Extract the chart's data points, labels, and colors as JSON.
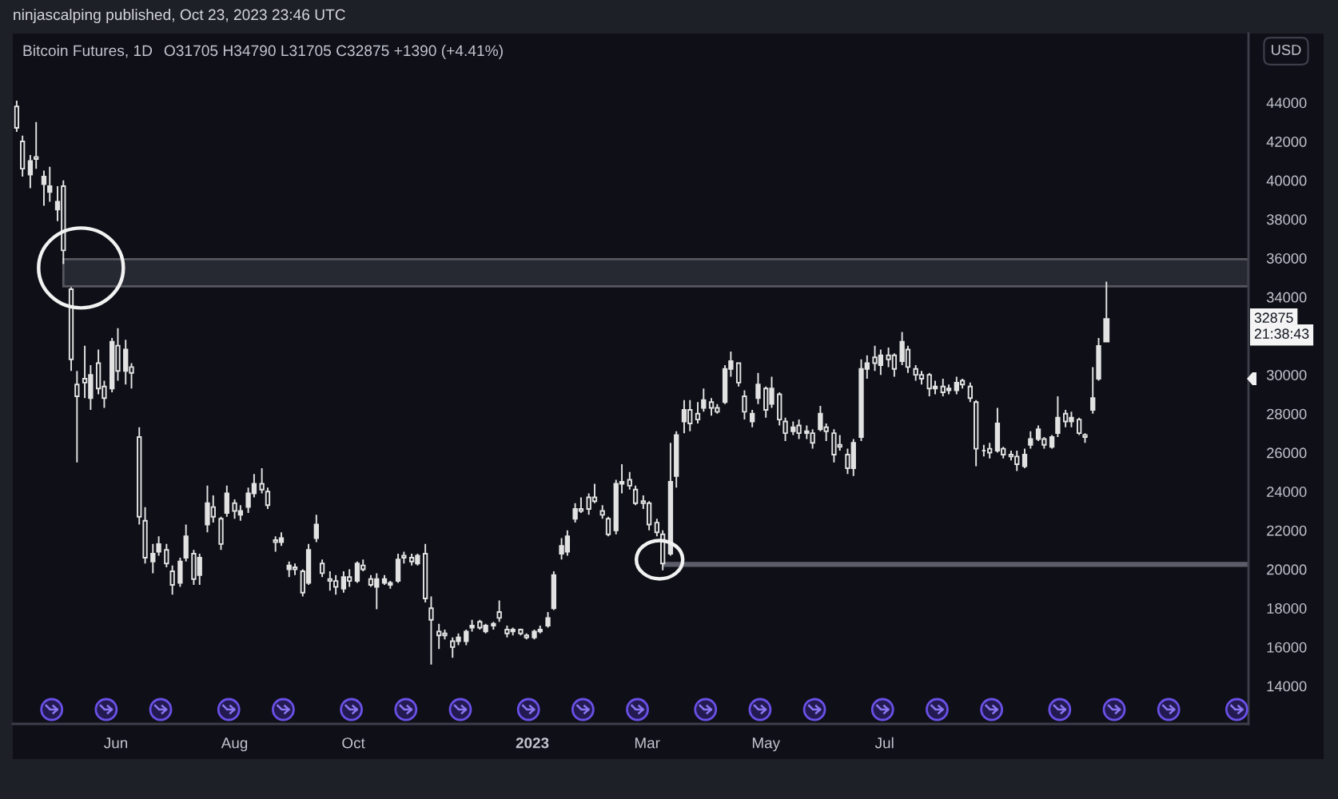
{
  "chart_data": {
    "type": "candlestick",
    "title": "Bitcoin Futures, 1D",
    "subtitle": "O31705 H34790 L31705 C32875 +1390 (+4.41%)",
    "ylabel": "USD",
    "color": "#e2e2e2",
    "x": [
      "2022-04-11",
      "2022-04-14",
      "2022-04-18",
      "2022-04-21",
      "2022-04-25",
      "2022-04-28",
      "2022-05-02",
      "2022-05-05",
      "2022-05-09",
      "2022-05-12",
      "2022-05-16",
      "2022-05-19",
      "2022-05-23",
      "2022-05-26",
      "2022-05-30",
      "2022-06-02",
      "2022-06-06",
      "2022-06-09",
      "2022-06-13",
      "2022-06-16",
      "2022-06-20",
      "2022-06-23",
      "2022-06-27",
      "2022-06-30",
      "2022-07-04",
      "2022-07-07",
      "2022-07-11",
      "2022-07-14",
      "2022-07-18",
      "2022-07-21",
      "2022-07-25",
      "2022-07-28",
      "2022-08-01",
      "2022-08-04",
      "2022-08-08",
      "2022-08-11",
      "2022-08-15",
      "2022-08-18",
      "2022-08-22",
      "2022-08-25",
      "2022-08-29",
      "2022-09-01",
      "2022-09-05",
      "2022-09-08",
      "2022-09-12",
      "2022-09-15",
      "2022-09-19",
      "2022-09-22",
      "2022-09-26",
      "2022-09-29",
      "2022-10-03",
      "2022-10-06",
      "2022-10-10",
      "2022-10-13",
      "2022-10-17",
      "2022-10-20",
      "2022-10-24",
      "2022-10-27",
      "2022-10-31",
      "2022-11-03",
      "2022-11-07",
      "2022-11-10",
      "2022-11-14",
      "2022-11-17",
      "2022-11-21",
      "2022-11-24",
      "2022-11-28",
      "2022-12-01",
      "2022-12-05",
      "2022-12-08",
      "2022-12-12",
      "2022-12-15",
      "2022-12-19",
      "2022-12-22",
      "2022-12-26",
      "2022-12-29",
      "2023-01-02",
      "2023-01-05",
      "2023-01-09",
      "2023-01-12",
      "2023-01-16",
      "2023-01-19",
      "2023-01-23",
      "2023-01-26",
      "2023-01-30",
      "2023-02-02",
      "2023-02-06",
      "2023-02-09",
      "2023-02-13",
      "2023-02-16",
      "2023-02-20",
      "2023-02-23",
      "2023-02-27",
      "2023-03-02",
      "2023-03-06",
      "2023-03-09",
      "2023-03-13",
      "2023-03-16",
      "2023-03-20",
      "2023-03-23",
      "2023-03-27",
      "2023-03-30",
      "2023-04-03",
      "2023-04-06",
      "2023-04-10",
      "2023-04-13",
      "2023-04-17",
      "2023-04-20",
      "2023-04-24",
      "2023-04-27",
      "2023-05-01",
      "2023-05-04",
      "2023-05-08",
      "2023-05-11",
      "2023-05-15",
      "2023-05-18",
      "2023-05-22",
      "2023-05-25",
      "2023-05-29",
      "2023-06-01",
      "2023-06-05",
      "2023-06-08",
      "2023-06-12",
      "2023-06-15",
      "2023-06-19",
      "2023-06-22",
      "2023-06-26",
      "2023-06-29",
      "2023-07-03",
      "2023-07-06",
      "2023-07-10",
      "2023-07-13",
      "2023-07-17",
      "2023-07-20",
      "2023-07-24",
      "2023-07-27",
      "2023-07-31",
      "2023-08-03",
      "2023-08-07",
      "2023-08-10",
      "2023-08-14",
      "2023-08-17",
      "2023-08-21",
      "2023-08-24",
      "2023-08-28",
      "2023-08-31",
      "2023-09-04",
      "2023-09-07",
      "2023-09-11",
      "2023-09-14",
      "2023-09-18",
      "2023-09-21",
      "2023-09-25",
      "2023-09-28",
      "2023-10-02",
      "2023-10-05",
      "2023-10-09",
      "2023-10-12",
      "2023-10-16",
      "2023-10-19",
      "2023-10-23"
    ],
    "ohlc": [
      [
        43800,
        44100,
        42500,
        42700
      ],
      [
        42000,
        42300,
        40200,
        40600
      ],
      [
        40300,
        41300,
        39600,
        41000
      ],
      [
        41200,
        43000,
        40600,
        41100
      ],
      [
        39800,
        40500,
        38700,
        40200
      ],
      [
        39400,
        40700,
        38900,
        39700
      ],
      [
        38500,
        39700,
        37900,
        38900
      ],
      [
        39700,
        40000,
        35700,
        36400
      ],
      [
        34400,
        34500,
        30200,
        30800
      ],
      [
        29500,
        30200,
        25500,
        28900
      ],
      [
        29800,
        31500,
        28800,
        29600
      ],
      [
        28800,
        30500,
        28200,
        30000
      ],
      [
        30600,
        31300,
        29000,
        29300
      ],
      [
        29400,
        29700,
        28300,
        28800
      ],
      [
        29300,
        31900,
        29100,
        31700
      ],
      [
        31500,
        32400,
        29700,
        30200
      ],
      [
        30200,
        31800,
        29500,
        31300
      ],
      [
        30400,
        30600,
        29300,
        30100
      ],
      [
        26800,
        27300,
        22300,
        22700
      ],
      [
        22500,
        23200,
        20300,
        20600
      ],
      [
        20400,
        21300,
        19800,
        20800
      ],
      [
        20900,
        21700,
        20700,
        21300
      ],
      [
        21000,
        21300,
        20100,
        20300
      ],
      [
        19900,
        20200,
        18700,
        19200
      ],
      [
        19300,
        20600,
        19100,
        20400
      ],
      [
        20600,
        22300,
        20400,
        21700
      ],
      [
        20800,
        21000,
        19200,
        19500
      ],
      [
        19700,
        20800,
        19200,
        20600
      ],
      [
        22300,
        24300,
        21900,
        23400
      ],
      [
        23200,
        23800,
        22400,
        22700
      ],
      [
        22600,
        22700,
        21000,
        21300
      ],
      [
        22900,
        24300,
        22700,
        23900
      ],
      [
        23400,
        23600,
        22600,
        23000
      ],
      [
        22800,
        23300,
        22500,
        23000
      ],
      [
        23200,
        24200,
        22900,
        23900
      ],
      [
        23900,
        24900,
        23700,
        24400
      ],
      [
        24400,
        25200,
        23900,
        24100
      ],
      [
        24000,
        24200,
        23100,
        23300
      ],
      [
        21500,
        21700,
        20900,
        21400
      ],
      [
        21400,
        21900,
        21200,
        21600
      ],
      [
        20000,
        20400,
        19600,
        20200
      ],
      [
        20100,
        20300,
        19700,
        20000
      ],
      [
        19900,
        20000,
        18600,
        18800
      ],
      [
        19300,
        21300,
        19200,
        21000
      ],
      [
        21600,
        22800,
        21400,
        22300
      ],
      [
        20300,
        20500,
        19600,
        19800
      ],
      [
        19500,
        19900,
        18900,
        19400
      ],
      [
        19400,
        19700,
        18700,
        19100
      ],
      [
        19000,
        19900,
        18800,
        19600
      ],
      [
        19600,
        20000,
        19100,
        19400
      ],
      [
        19400,
        20400,
        19300,
        20300
      ],
      [
        20200,
        20500,
        19900,
        20000
      ],
      [
        19500,
        19700,
        19100,
        19200
      ],
      [
        19100,
        19800,
        17950,
        19500
      ],
      [
        19300,
        19700,
        19200,
        19500
      ],
      [
        19200,
        19400,
        19000,
        19300
      ],
      [
        19400,
        20800,
        19300,
        20500
      ],
      [
        20700,
        20900,
        20300,
        20600
      ],
      [
        20600,
        20800,
        20200,
        20400
      ],
      [
        20300,
        20800,
        20200,
        20700
      ],
      [
        20800,
        21300,
        18300,
        18500
      ],
      [
        18000,
        18600,
        15100,
        17400
      ],
      [
        16800,
        17200,
        15900,
        16600
      ],
      [
        16700,
        16900,
        16400,
        16600
      ],
      [
        16300,
        16500,
        15450,
        16000
      ],
      [
        16300,
        16700,
        16100,
        16500
      ],
      [
        16300,
        16900,
        16100,
        16800
      ],
      [
        17000,
        17400,
        16800,
        17100
      ],
      [
        17300,
        17400,
        16900,
        17000
      ],
      [
        16800,
        17200,
        16700,
        17100
      ],
      [
        17100,
        17300,
        16900,
        17200
      ],
      [
        17800,
        18400,
        17300,
        17500
      ],
      [
        16900,
        17100,
        16500,
        16700
      ],
      [
        16800,
        17000,
        16600,
        16900
      ],
      [
        16900,
        16950,
        16600,
        16700
      ],
      [
        16600,
        16700,
        16400,
        16500
      ],
      [
        16500,
        16900,
        16400,
        16800
      ],
      [
        16800,
        17100,
        16700,
        16900
      ],
      [
        17100,
        17800,
        17000,
        17500
      ],
      [
        18000,
        19900,
        17900,
        19700
      ],
      [
        20800,
        21600,
        20500,
        21200
      ],
      [
        20900,
        22000,
        20700,
        21700
      ],
      [
        22600,
        23400,
        22400,
        23100
      ],
      [
        23100,
        23700,
        22900,
        23000
      ],
      [
        23700,
        23900,
        22800,
        23100
      ],
      [
        23700,
        24400,
        23400,
        23500
      ],
      [
        23000,
        23300,
        22600,
        22800
      ],
      [
        22600,
        22700,
        21700,
        21800
      ],
      [
        22000,
        24600,
        21800,
        24400
      ],
      [
        24400,
        25400,
        23900,
        24500
      ],
      [
        24600,
        25000,
        24100,
        24300
      ],
      [
        24100,
        24300,
        23300,
        23400
      ],
      [
        23500,
        23800,
        23100,
        23400
      ],
      [
        23400,
        23500,
        22000,
        22300
      ],
      [
        22400,
        22600,
        21700,
        21900
      ],
      [
        21800,
        22000,
        19950,
        20300
      ],
      [
        20800,
        26500,
        20700,
        24500
      ],
      [
        24800,
        27100,
        24200,
        26900
      ],
      [
        27600,
        28700,
        27000,
        28200
      ],
      [
        28200,
        28700,
        27100,
        27500
      ],
      [
        28000,
        28600,
        27500,
        27700
      ],
      [
        28300,
        29300,
        28100,
        28700
      ],
      [
        28600,
        28800,
        27900,
        28300
      ],
      [
        28300,
        28500,
        28000,
        28100
      ],
      [
        28600,
        30500,
        28500,
        30300
      ],
      [
        30300,
        31200,
        29900,
        30700
      ],
      [
        30600,
        30600,
        29400,
        29600
      ],
      [
        28900,
        29200,
        27700,
        28100
      ],
      [
        27600,
        28200,
        27300,
        28000
      ],
      [
        28800,
        30100,
        28500,
        29500
      ],
      [
        29300,
        29400,
        27800,
        28200
      ],
      [
        28500,
        29900,
        28300,
        29300
      ],
      [
        29000,
        29100,
        27400,
        27700
      ],
      [
        27600,
        27800,
        26600,
        27000
      ],
      [
        27100,
        27600,
        26900,
        27300
      ],
      [
        27400,
        27700,
        26700,
        27000
      ],
      [
        27000,
        27400,
        26700,
        27100
      ],
      [
        27000,
        27200,
        26200,
        26500
      ],
      [
        27200,
        28400,
        27100,
        28000
      ],
      [
        27300,
        27500,
        26600,
        27100
      ],
      [
        27000,
        27200,
        25500,
        25900
      ],
      [
        26400,
        26900,
        26100,
        26300
      ],
      [
        25900,
        26200,
        24900,
        25200
      ],
      [
        25200,
        26700,
        24800,
        26500
      ],
      [
        26800,
        30800,
        26600,
        30300
      ],
      [
        30300,
        31000,
        29800,
        30600
      ],
      [
        30900,
        31500,
        30200,
        30600
      ],
      [
        30500,
        31300,
        30000,
        31000
      ],
      [
        31000,
        31400,
        30400,
        30800
      ],
      [
        31000,
        31100,
        29900,
        30300
      ],
      [
        30700,
        32200,
        30500,
        31700
      ],
      [
        31300,
        31500,
        30100,
        30400
      ],
      [
        30300,
        30500,
        29700,
        30000
      ],
      [
        30000,
        30200,
        29500,
        29800
      ],
      [
        30000,
        30100,
        28900,
        29300
      ],
      [
        29300,
        29700,
        29000,
        29400
      ],
      [
        29400,
        29800,
        28900,
        29100
      ],
      [
        29200,
        29500,
        29000,
        29300
      ],
      [
        29200,
        29900,
        29000,
        29600
      ],
      [
        29700,
        29800,
        29300,
        29500
      ],
      [
        29400,
        29600,
        28600,
        28800
      ],
      [
        28600,
        28700,
        25300,
        26200
      ],
      [
        26100,
        26400,
        25800,
        26100
      ],
      [
        26200,
        26500,
        25700,
        26000
      ],
      [
        26100,
        28300,
        26000,
        27500
      ],
      [
        26200,
        26300,
        25700,
        25900
      ],
      [
        25900,
        26100,
        25600,
        25800
      ],
      [
        25800,
        26100,
        25050,
        25400
      ],
      [
        25300,
        26200,
        25200,
        25900
      ],
      [
        26400,
        27100,
        26200,
        26700
      ],
      [
        26700,
        27400,
        26600,
        27200
      ],
      [
        26700,
        26800,
        26200,
        26400
      ],
      [
        26300,
        26900,
        26200,
        26800
      ],
      [
        27000,
        28900,
        26800,
        27800
      ],
      [
        28000,
        28200,
        27300,
        27600
      ],
      [
        27600,
        28100,
        27300,
        27800
      ],
      [
        27700,
        27800,
        26900,
        27000
      ],
      [
        26900,
        27000,
        26500,
        26800
      ],
      [
        28200,
        30400,
        28000,
        28800
      ],
      [
        29800,
        31900,
        29700,
        31485
      ],
      [
        31705,
        34790,
        31705,
        32875
      ]
    ],
    "xlim": [
      "2022-04-09",
      "2024-01-04"
    ],
    "ylim": [
      12050,
      47550
    ],
    "xticks": [
      {
        "value": "2022-06-01",
        "label": "Jun"
      },
      {
        "value": "2022-08-01",
        "label": "Aug"
      },
      {
        "value": "2022-10-01",
        "label": "Oct"
      },
      {
        "value": "2023-01-01",
        "label": "2023"
      },
      {
        "value": "2023-03-01",
        "label": "Mar"
      },
      {
        "value": "2023-05-01",
        "label": "May"
      },
      {
        "value": "2023-07-01",
        "label": "Jul"
      }
    ],
    "yticks": [
      14000,
      16000,
      18000,
      20000,
      22000,
      24000,
      26000,
      28000,
      30000,
      34000,
      36000,
      38000,
      40000,
      42000,
      44000
    ],
    "bands": [
      {
        "axis": "y",
        "from": 34550,
        "to": 35950,
        "color": "#262832"
      }
    ],
    "ref_lines": [
      {
        "axis": "y",
        "value": 20250,
        "color": "#5b5e69"
      }
    ],
    "annotations": [
      "ninjascalping published, Oct 23, 2023 23:46 UTC",
      {
        "text": "32875",
        "y": 32875
      },
      "21:38:43"
    ]
  }
}
